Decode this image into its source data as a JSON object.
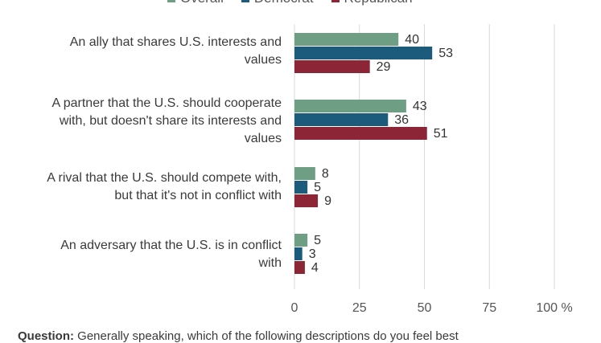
{
  "chart_data": {
    "type": "bar",
    "orientation": "horizontal",
    "categories": [
      "An ally that shares U.S. interests and values",
      "A partner that the U.S. should cooperate with, but doesn't share its interests and values",
      "A rival that the U.S. should compete with, but that it's not in conflict with",
      "An adversary that the U.S. is in conflict with"
    ],
    "series": [
      {
        "name": "Overall",
        "color": "#6e9e84",
        "values": [
          40,
          43,
          8,
          5
        ]
      },
      {
        "name": "Democrat",
        "color": "#1c5b7c",
        "values": [
          53,
          36,
          5,
          3
        ]
      },
      {
        "name": "Republican",
        "color": "#8c2536",
        "values": [
          29,
          51,
          9,
          4
        ]
      }
    ],
    "xlim": [
      0,
      100
    ],
    "xticks": [
      "0",
      "25",
      "50",
      "75",
      "100 %"
    ],
    "grid": true,
    "legend_position": "top"
  },
  "labels": {
    "cat0": [
      "An ally that shares U.S. interests and",
      "values"
    ],
    "cat1": [
      "A partner that the U.S. should cooperate",
      "with, but doesn't share its interests and",
      "values"
    ],
    "cat2": [
      "A rival that the U.S. should compete with,",
      "but that it's not in conflict with"
    ],
    "cat3": [
      "An adversary that the U.S. is in conflict",
      "with"
    ]
  },
  "question": {
    "prefix": "Question:",
    "text": "Generally speaking, which of the following descriptions do you feel best"
  }
}
